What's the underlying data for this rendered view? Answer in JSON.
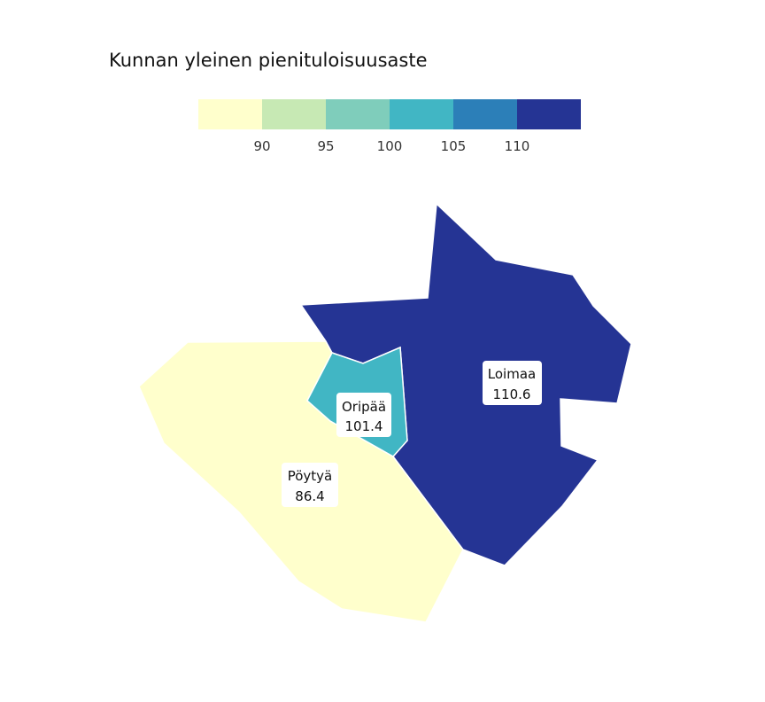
{
  "title": "Kunnan yleinen pienituloisuusaste",
  "legend": {
    "colors": [
      "#ffffcc",
      "#c7e9b4",
      "#7fcdbb",
      "#41b6c4",
      "#2c7fb8",
      "#253494"
    ],
    "ticks": [
      "90",
      "95",
      "100",
      "105",
      "110"
    ]
  },
  "regions": [
    {
      "name": "Pöytyä",
      "value": "86.4",
      "color": "#ffffcc"
    },
    {
      "name": "Oripää",
      "value": "101.4",
      "color": "#41b6c4"
    },
    {
      "name": "Loimaa",
      "value": "110.6",
      "color": "#253494"
    }
  ]
}
